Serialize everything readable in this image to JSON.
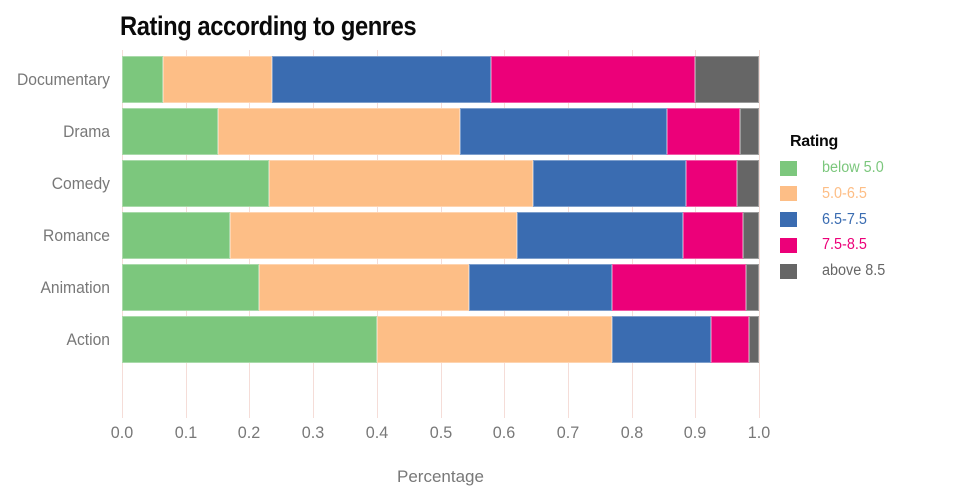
{
  "chart_data": {
    "type": "bar",
    "orientation": "horizontal",
    "stacked": true,
    "title": "Rating according to genres",
    "xlabel": "Percentage",
    "ylabel": "",
    "xlim": [
      0,
      1
    ],
    "x_ticks": [
      0.0,
      0.1,
      0.2,
      0.3,
      0.4,
      0.5,
      0.6,
      0.7,
      0.8,
      0.9,
      1.0
    ],
    "x_tick_labels": [
      "0.0",
      "0.1",
      "0.2",
      "0.3",
      "0.4",
      "0.5",
      "0.6",
      "0.7",
      "0.8",
      "0.9",
      "1.0"
    ],
    "grid": "vertical-light",
    "legend_title": "Rating",
    "legend_position": "right",
    "categories": [
      "Documentary",
      "Drama",
      "Comedy",
      "Romance",
      "Animation",
      "Action"
    ],
    "series": [
      {
        "name": "below 5.0",
        "color": "#7CC77D",
        "values": [
          0.065,
          0.15,
          0.23,
          0.17,
          0.215,
          0.4
        ]
      },
      {
        "name": "5.0-6.5",
        "color": "#FDBE86",
        "values": [
          0.17,
          0.38,
          0.415,
          0.45,
          0.33,
          0.37
        ]
      },
      {
        "name": "6.5-7.5",
        "color": "#3A6CB1",
        "values": [
          0.345,
          0.325,
          0.24,
          0.26,
          0.225,
          0.155
        ]
      },
      {
        "name": "7.5-8.5",
        "color": "#EC0079",
        "values": [
          0.32,
          0.115,
          0.08,
          0.095,
          0.21,
          0.06
        ]
      },
      {
        "name": "above 8.5",
        "color": "#666666",
        "values": [
          0.1,
          0.03,
          0.035,
          0.025,
          0.02,
          0.015
        ]
      }
    ],
    "colors": {
      "background": "#ffffff",
      "gridline": "#f5ddd8",
      "axis_text": "#787878",
      "title_text": "#0a0a0a"
    }
  }
}
